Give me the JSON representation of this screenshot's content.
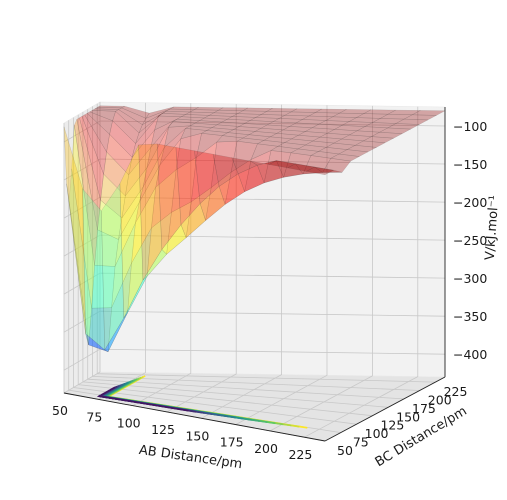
{
  "chart_data": {
    "type": "surface3d",
    "title": "",
    "xlabel": "AB Distance/pm",
    "ylabel": "BC Distance/pm",
    "zlabel": "V/kJ.mol⁻¹",
    "xlim": [
      50,
      240
    ],
    "ylim": [
      50,
      240
    ],
    "zlim": [
      -430,
      -75
    ],
    "xticks": [
      "50",
      "75",
      "100",
      "125",
      "150",
      "175",
      "200",
      "225"
    ],
    "yticks": [
      "50",
      "75",
      "100",
      "125",
      "150",
      "175",
      "200",
      "225"
    ],
    "zticks": [
      "−100",
      "−150",
      "−200",
      "−250",
      "−300",
      "−350",
      "−400"
    ],
    "xtick_values": [
      50,
      75,
      100,
      125,
      150,
      175,
      200,
      225
    ],
    "ytick_values": [
      50,
      75,
      100,
      125,
      150,
      175,
      200,
      225
    ],
    "ztick_values": [
      -100,
      -150,
      -200,
      -250,
      -300,
      -350,
      -400
    ],
    "surface": {
      "colormap": "jet",
      "alpha": 0.32,
      "minimum_z": -420,
      "plateau_z": -80,
      "description_keys": [
        "x",
        "y",
        "z"
      ]
    },
    "contour": {
      "colormap": "viridis",
      "offset_z": -430
    },
    "grid": true
  }
}
